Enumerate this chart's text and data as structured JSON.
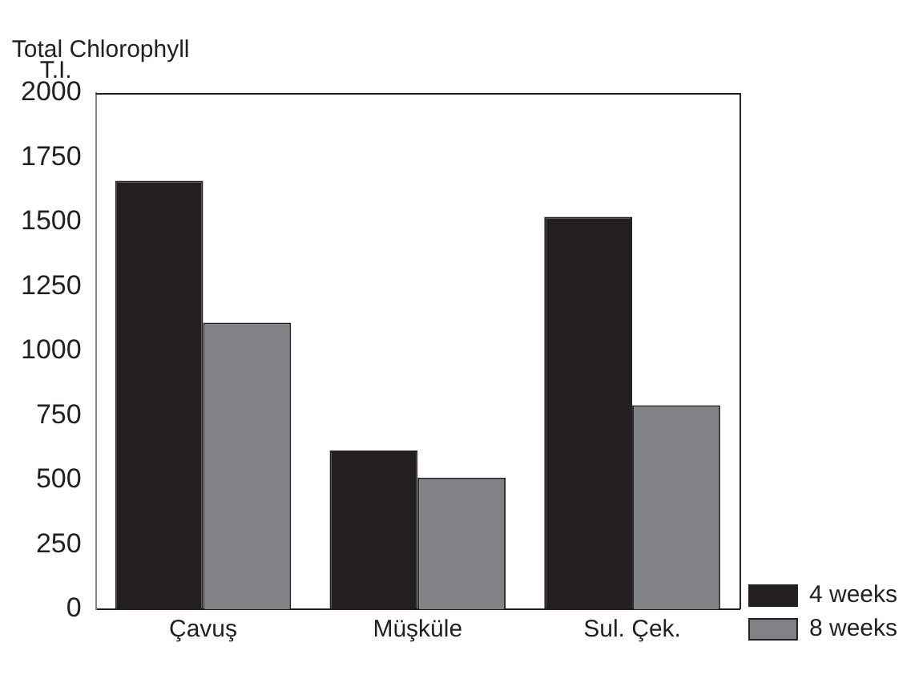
{
  "chart_data": {
    "type": "bar",
    "ylabel": "Total Chlorophyll\nT.I.",
    "categories": [
      "Çavuş",
      "Müşküle",
      "Sul. Çek."
    ],
    "series": [
      {
        "name": "4 weeks",
        "color": "#231f20",
        "values": [
          1660,
          615,
          1520
        ]
      },
      {
        "name": "8 weeks",
        "color": "#808285",
        "values": [
          1110,
          510,
          790
        ]
      }
    ],
    "ylim": [
      0,
      2000
    ],
    "yticks": [
      0,
      250,
      500,
      750,
      1000,
      1250,
      1500,
      1750,
      2000
    ],
    "grid": false,
    "legend": "right"
  }
}
